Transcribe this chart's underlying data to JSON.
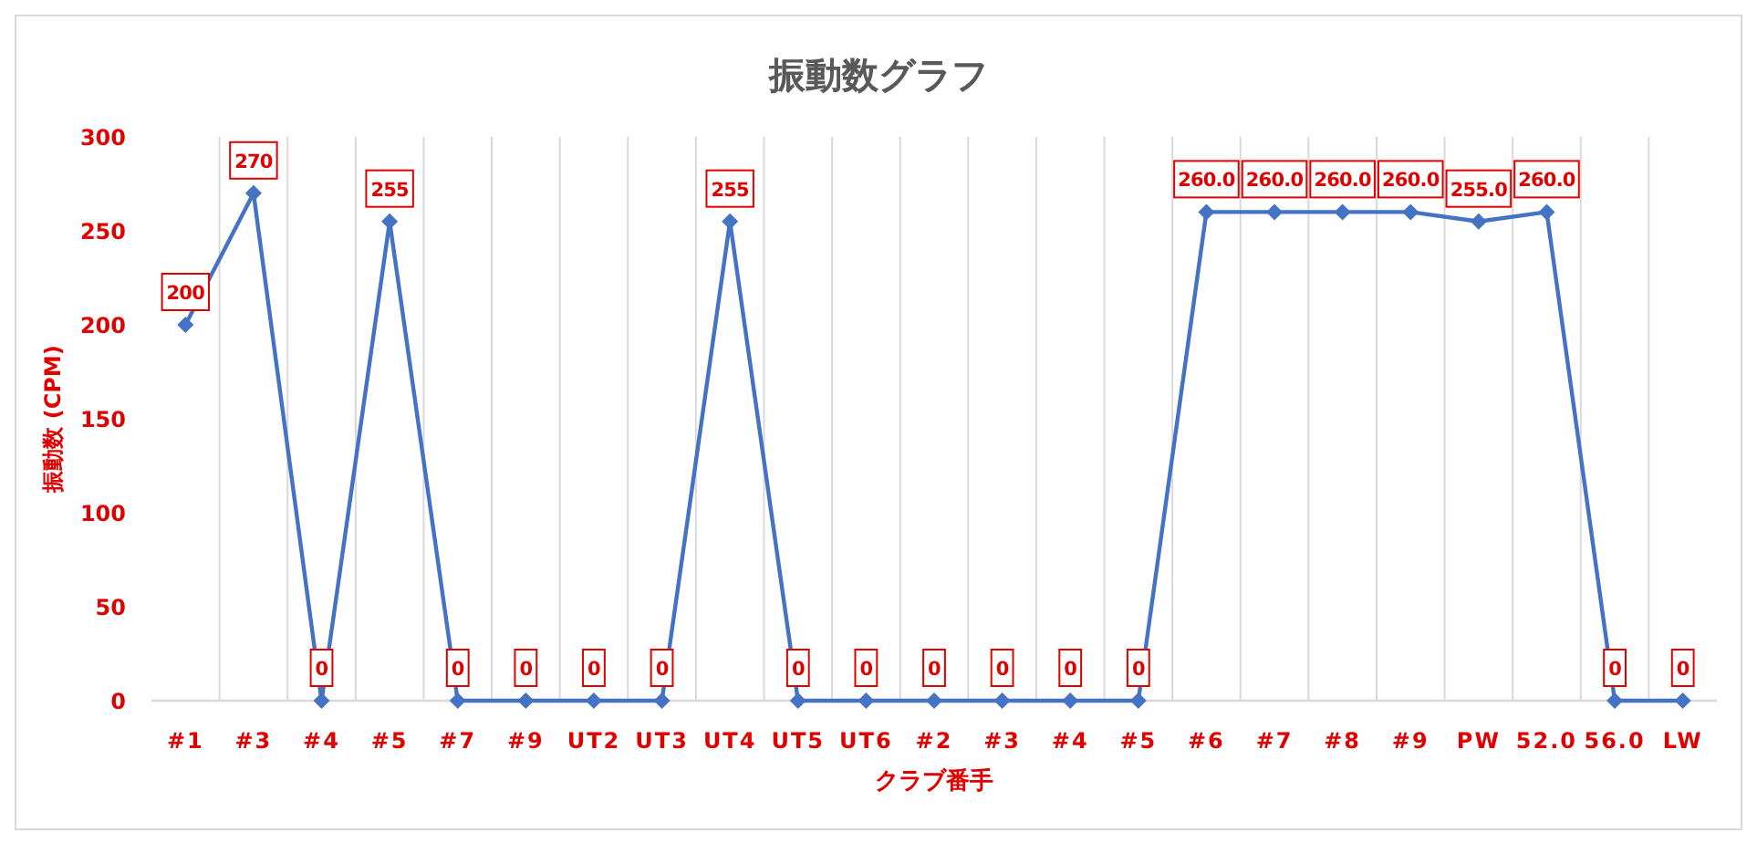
{
  "chart_data": {
    "type": "line",
    "title": "振動数グラフ",
    "xlabel": "クラブ番手",
    "ylabel": "振動数 (CPM)",
    "categories": [
      "#1",
      "#3",
      "#4",
      "#5",
      "#7",
      "#9",
      "UT2",
      "UT3",
      "UT4",
      "UT5",
      "UT6",
      "#2",
      "#3",
      "#4",
      "#5",
      "#6",
      "#7",
      "#8",
      "#9",
      "PW",
      "52.0",
      "56.0",
      "LW"
    ],
    "series": [
      {
        "color": "#4472c4",
        "values": [
          200,
          270,
          0,
          255,
          0,
          0,
          0,
          0,
          255,
          0,
          0,
          0,
          0,
          0,
          0,
          260,
          260,
          260,
          260,
          255,
          260,
          0,
          0
        ],
        "value_labels": [
          "200",
          "270",
          "0",
          "255",
          "0",
          "0",
          "0",
          "0",
          "255",
          "0",
          "0",
          "0",
          "0",
          "0",
          "0",
          "260.0",
          "260.0",
          "260.0",
          "260.0",
          "255.0",
          "260.0",
          "0",
          "0"
        ]
      }
    ],
    "ylim": [
      0,
      300
    ],
    "yticks": [
      0,
      50,
      100,
      150,
      200,
      250,
      300
    ],
    "grid": "x",
    "marker": "diamond",
    "line_style": "solid"
  }
}
